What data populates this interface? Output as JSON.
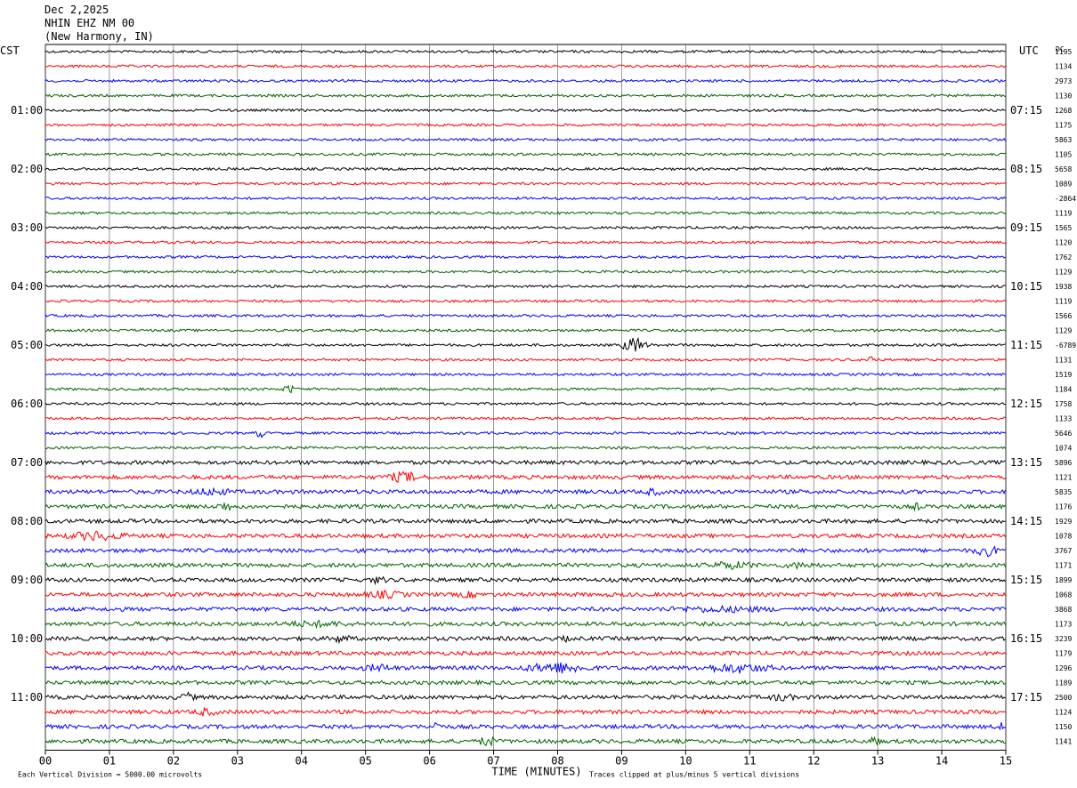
{
  "header": {
    "date": "Dec 2,2025",
    "station": "NHIN EHZ NM 00",
    "location": "(New Harmony, IN)"
  },
  "chart_data": {
    "type": "line",
    "title": "",
    "left_axis_label": "CST",
    "right_axis_label": "UTC",
    "dc_label": "DC",
    "xlabel": "TIME (MINUTES)",
    "x_ticks": [
      "00",
      "01",
      "02",
      "03",
      "04",
      "05",
      "06",
      "07",
      "08",
      "09",
      "10",
      "11",
      "12",
      "13",
      "14",
      "15"
    ],
    "xlim": [
      0,
      15
    ],
    "left_hour_labels": [
      "01:00",
      "02:00",
      "03:00",
      "04:00",
      "05:00",
      "06:00",
      "07:00",
      "08:00",
      "09:00",
      "10:00",
      "11:00"
    ],
    "right_hour_labels": [
      "07:15",
      "08:15",
      "09:15",
      "10:15",
      "11:15",
      "12:15",
      "13:15",
      "14:15",
      "15:15",
      "16:15",
      "17:15"
    ],
    "trace_colors": [
      "#000000",
      "#ff0000",
      "#0000ff",
      "#006400"
    ],
    "dc_offsets": [
      "1195",
      "1134",
      "2973",
      "1130",
      "1268",
      "1175",
      "5863",
      "1105",
      "5658",
      "1089",
      "-2864",
      "1119",
      "1565",
      "1120",
      "1762",
      "1129",
      "1938",
      "1119",
      "1566",
      "1129",
      "-6789",
      "1131",
      "1519",
      "1184",
      "1758",
      "1133",
      "5646",
      "1074",
      "5896",
      "1121",
      "5835",
      "1176",
      "1929",
      "1078",
      "3767",
      "1171",
      "1899",
      "1068",
      "3868",
      "1173",
      "3239",
      "1179",
      "1296",
      "1189",
      "2500",
      "1124",
      "1150",
      "1141"
    ],
    "footer_left": "Each Vertical Division = 5000.00 microvolts",
    "footer_right": "Traces clipped at plus/minus 5 vertical divisions"
  }
}
